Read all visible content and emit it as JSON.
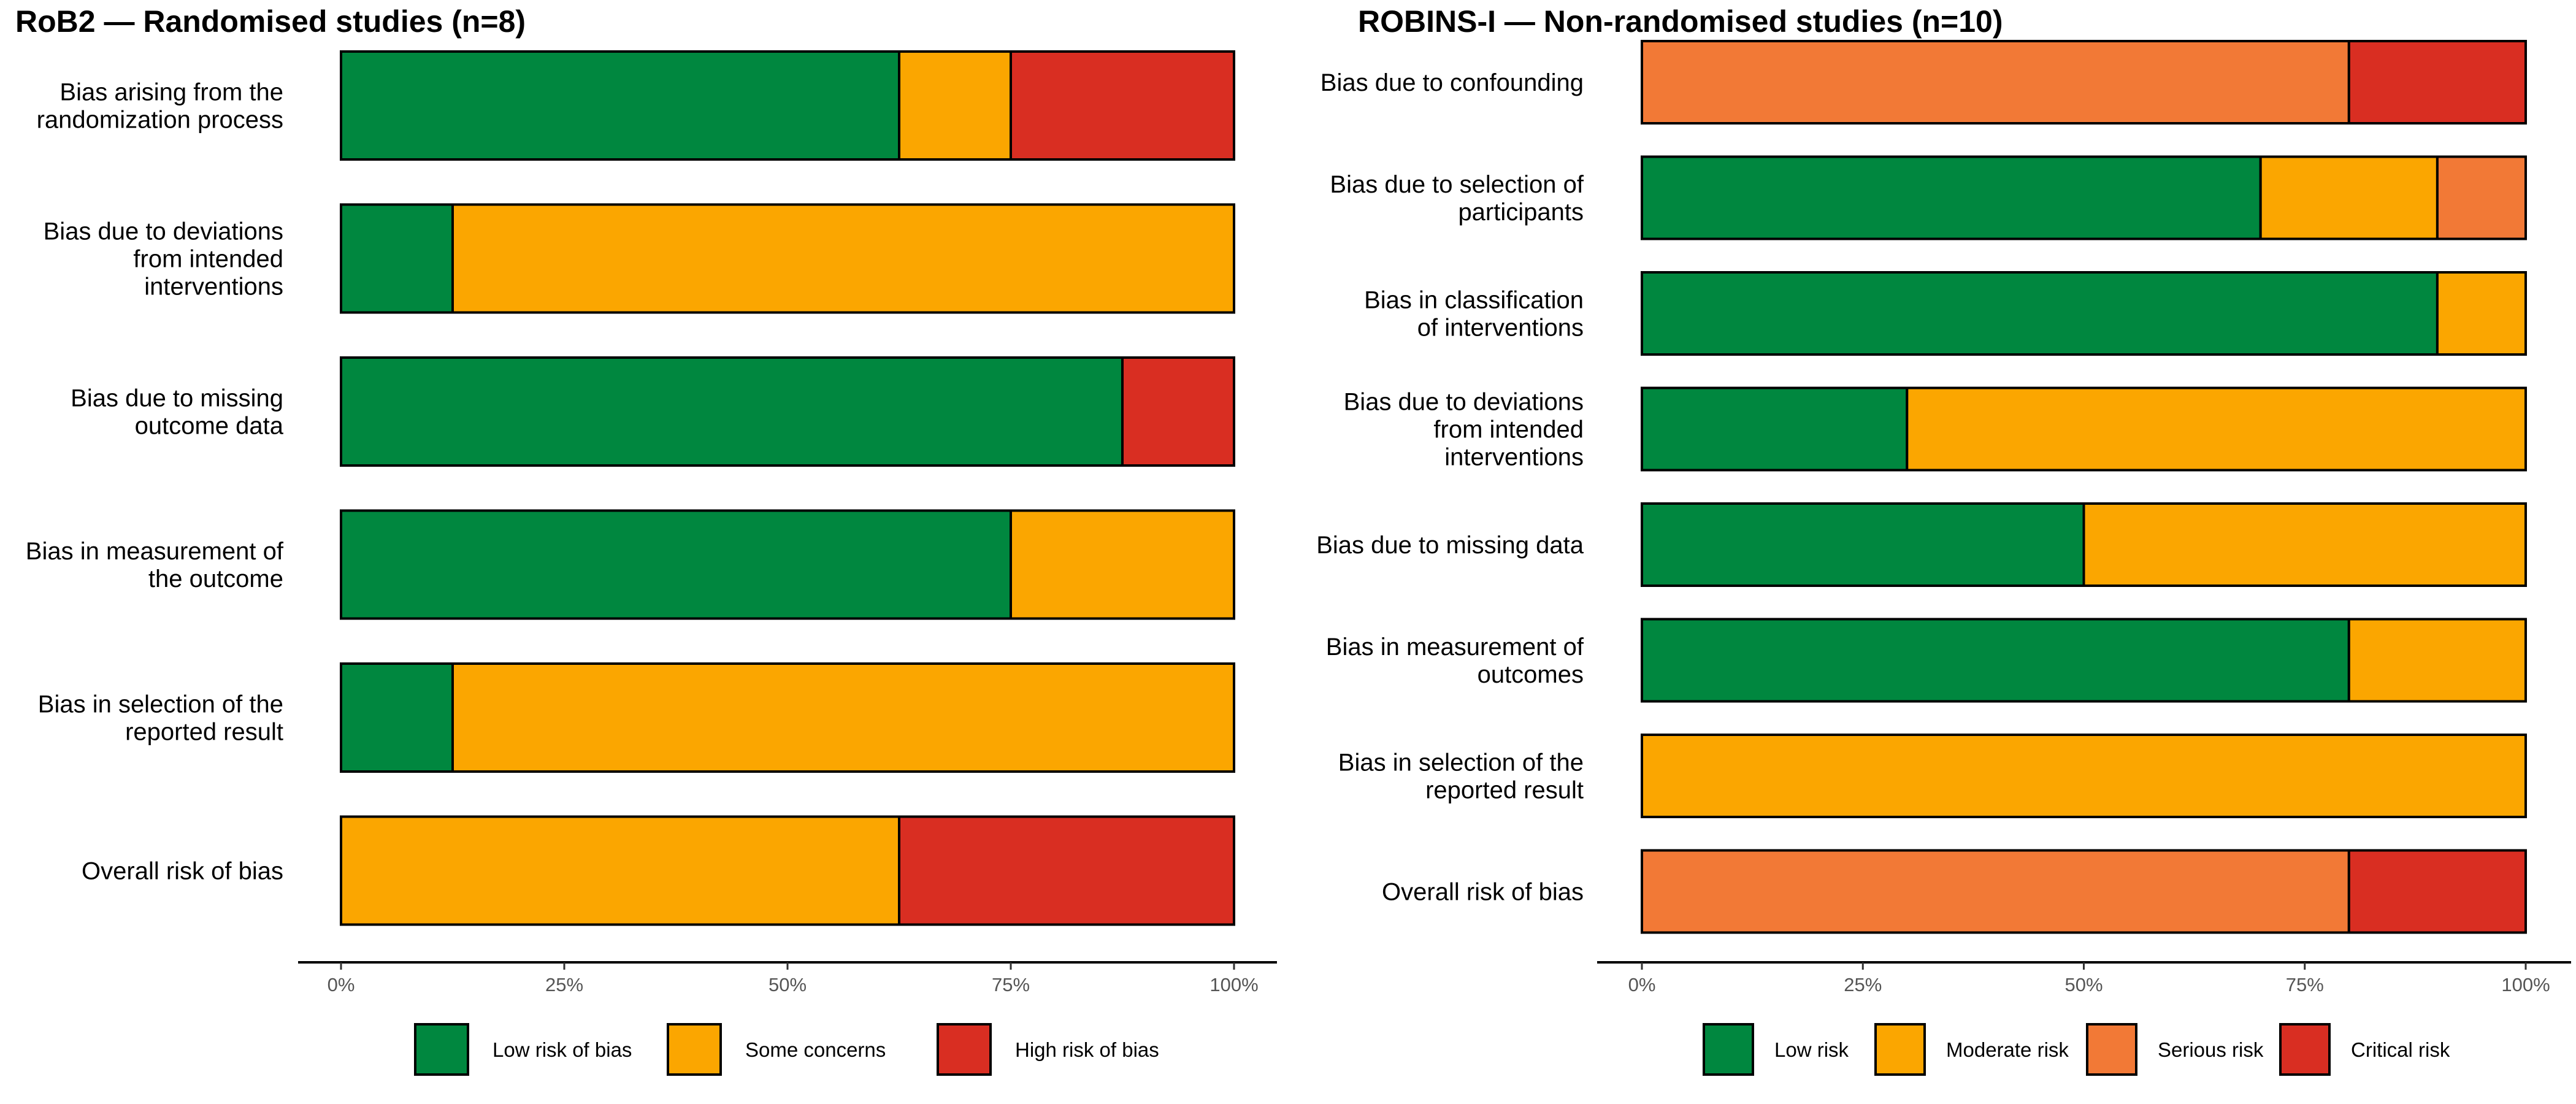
{
  "chart_data": [
    {
      "type": "bar",
      "orientation": "horizontal",
      "stacked": "percent",
      "title": "RoB2 — Randomised studies (n=8)",
      "xlabel": "",
      "ylabel": "",
      "xlim": [
        0,
        100
      ],
      "x_ticks": [
        "0%",
        "25%",
        "50%",
        "75%",
        "100%"
      ],
      "categories": [
        [
          "Bias arising from the",
          "randomization process"
        ],
        [
          "Bias due to deviations",
          "from intended",
          "interventions"
        ],
        [
          "Bias due to missing",
          "outcome data"
        ],
        [
          "Bias in measurement of",
          "the outcome"
        ],
        [
          "Bias in selection of the",
          "reported result"
        ],
        [
          "Overall risk of bias"
        ]
      ],
      "series": [
        {
          "name": "Low risk of bias",
          "color": "#00873F",
          "values": [
            62.5,
            12.5,
            87.5,
            75,
            12.5,
            0
          ]
        },
        {
          "name": "Some concerns",
          "color": "#FBA600",
          "values": [
            12.5,
            87.5,
            0,
            25,
            87.5,
            62.5
          ]
        },
        {
          "name": "High risk of bias",
          "color": "#D92E22",
          "values": [
            25,
            0,
            12.5,
            0,
            0,
            37.5
          ]
        }
      ],
      "legend_position": "bottom",
      "grid": false
    },
    {
      "type": "bar",
      "orientation": "horizontal",
      "stacked": "percent",
      "title": "ROBINS-I — Non-randomised studies (n=10)",
      "xlabel": "",
      "ylabel": "",
      "xlim": [
        0,
        100
      ],
      "x_ticks": [
        "0%",
        "25%",
        "50%",
        "75%",
        "100%"
      ],
      "categories": [
        [
          "Bias due to confounding"
        ],
        [
          "Bias due to selection of",
          "participants"
        ],
        [
          "Bias in classification",
          "of interventions"
        ],
        [
          "Bias due to deviations",
          "from intended",
          "interventions"
        ],
        [
          "Bias due to missing data"
        ],
        [
          "Bias in measurement of",
          "outcomes"
        ],
        [
          "Bias in selection of the",
          "reported result"
        ],
        [
          "Overall risk of bias"
        ]
      ],
      "series": [
        {
          "name": "Low risk",
          "color": "#00873F",
          "values": [
            0,
            70,
            90,
            30,
            50,
            80,
            0,
            0
          ]
        },
        {
          "name": "Moderate risk",
          "color": "#FBA600",
          "values": [
            0,
            20,
            10,
            70,
            50,
            20,
            100,
            0
          ]
        },
        {
          "name": "Serious risk",
          "color": "#F27936",
          "values": [
            80,
            10,
            0,
            0,
            0,
            0,
            0,
            80
          ]
        },
        {
          "name": "Critical risk",
          "color": "#D92E22",
          "values": [
            20,
            0,
            0,
            0,
            0,
            0,
            0,
            20
          ]
        }
      ],
      "legend_position": "bottom",
      "grid": false
    }
  ]
}
